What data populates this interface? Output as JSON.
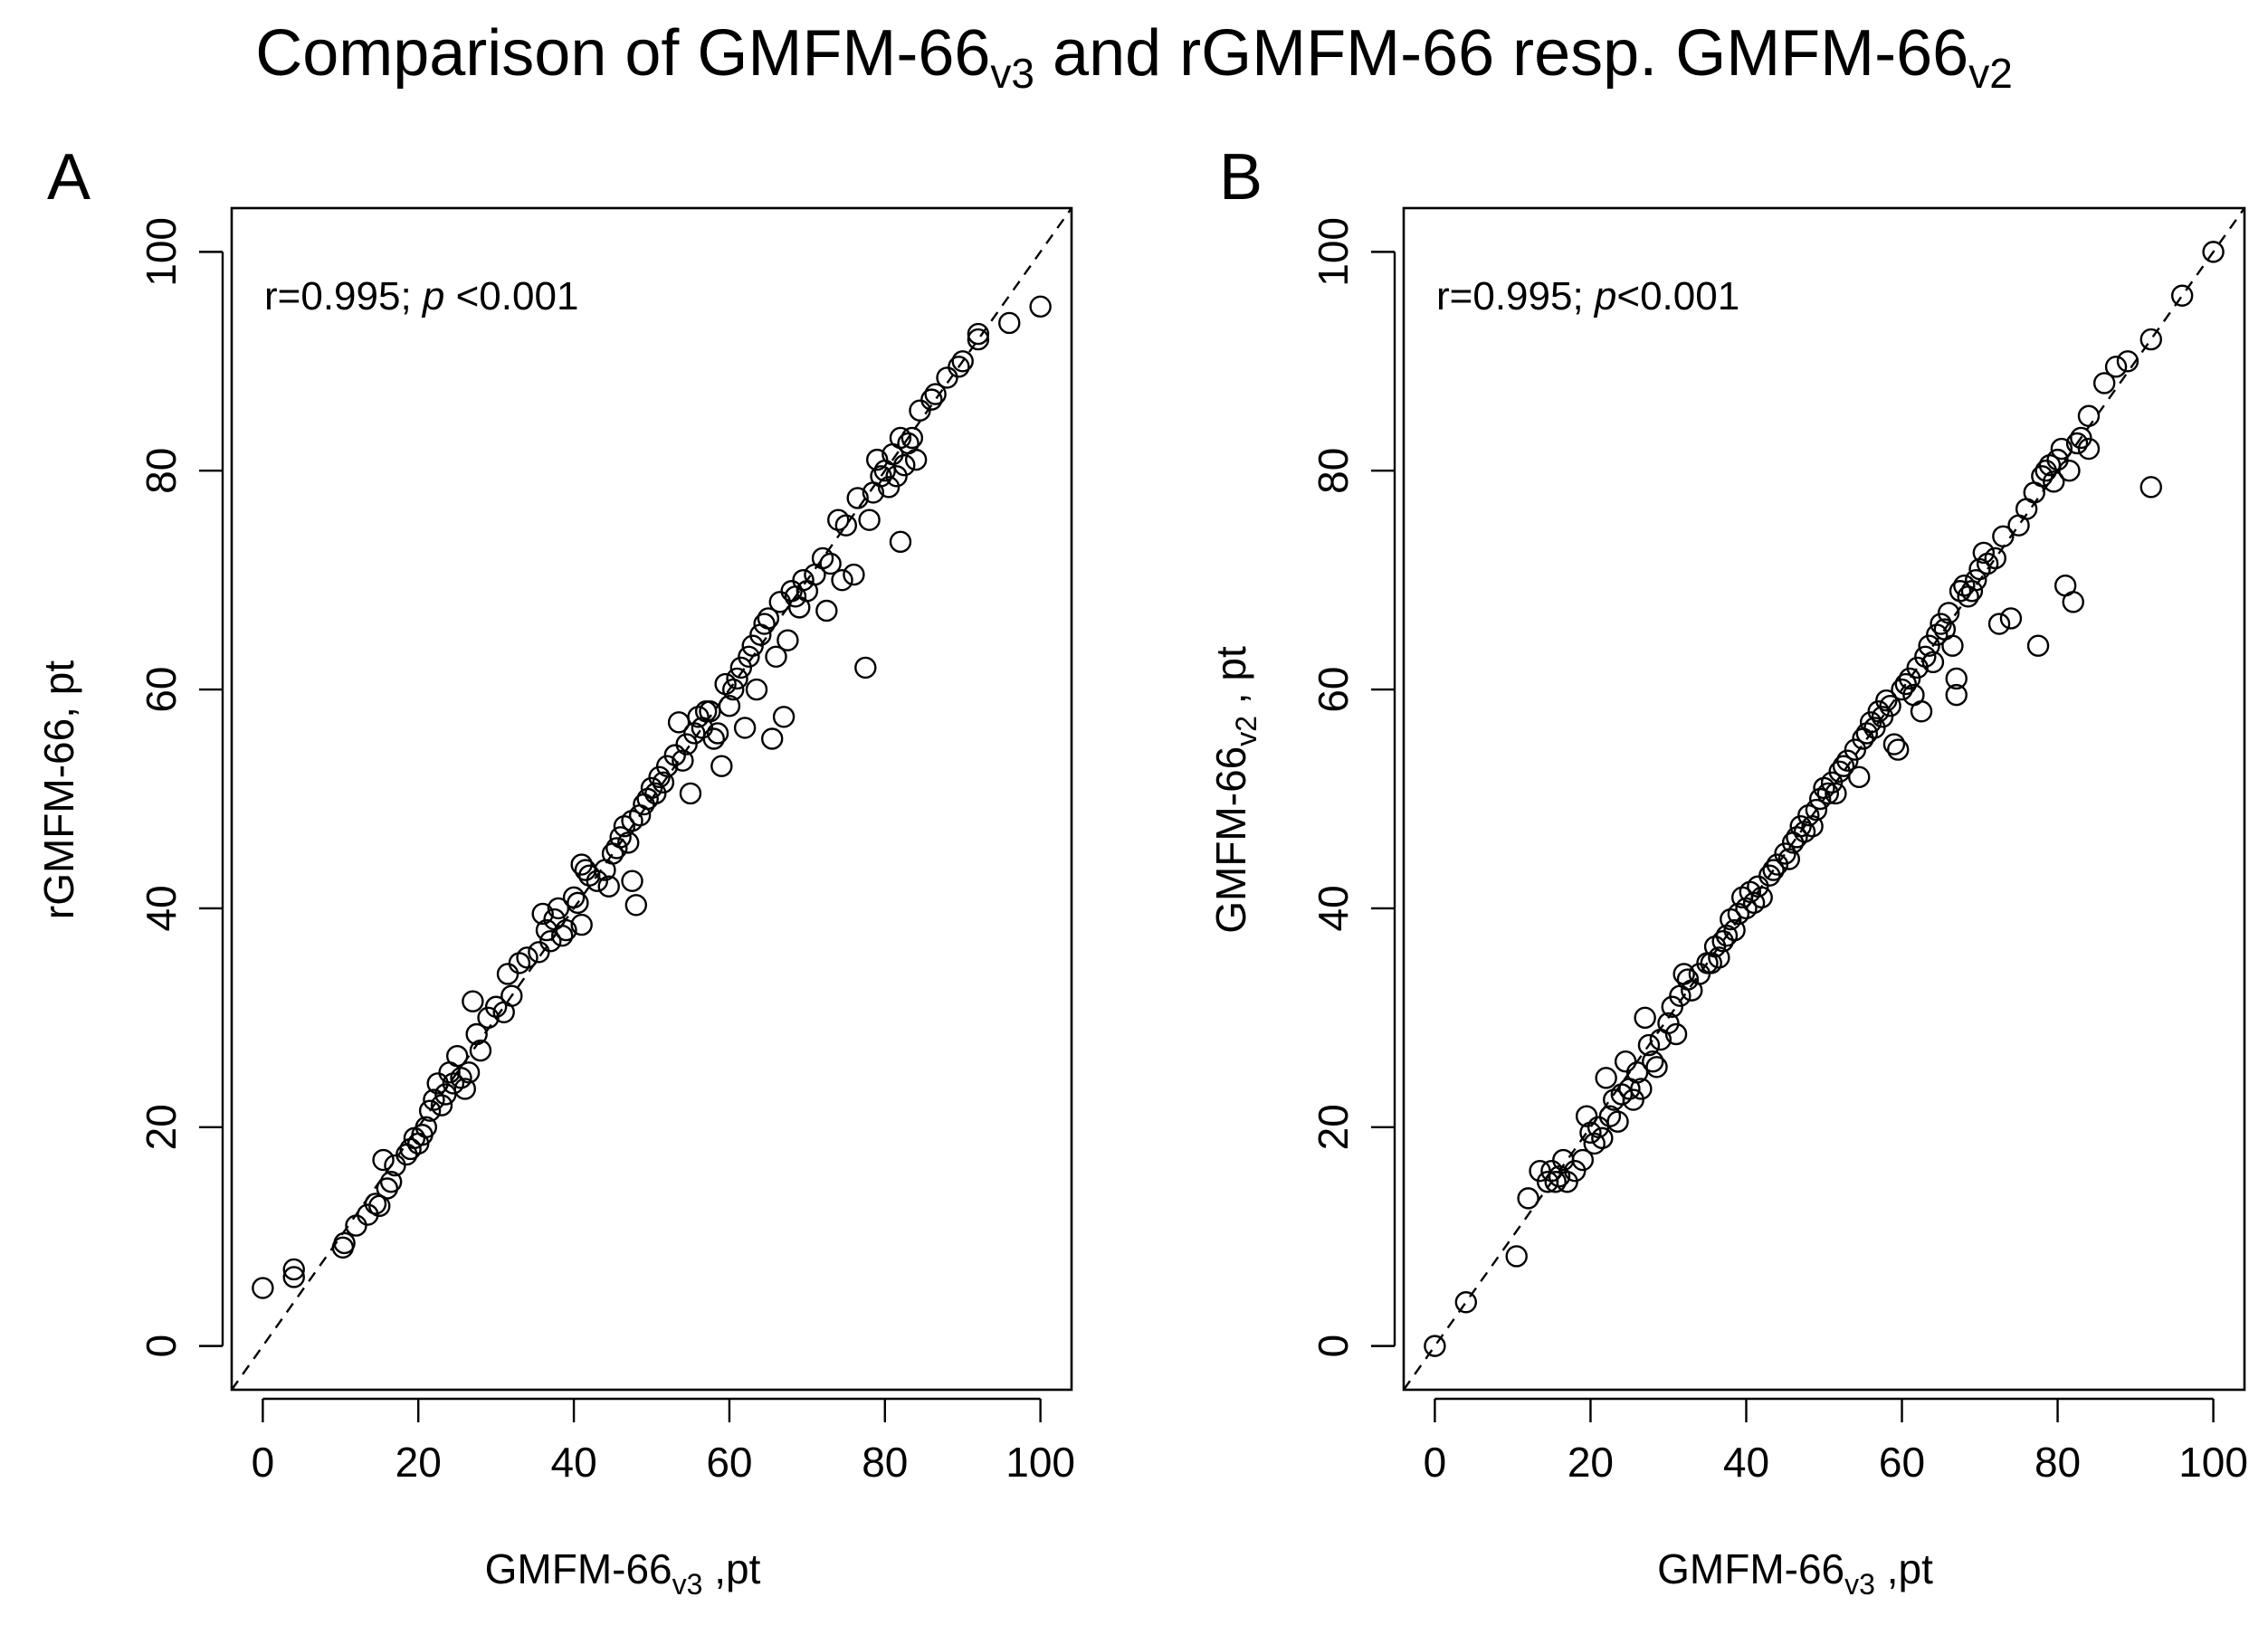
{
  "figure": {
    "title_main": "Comparison of GMFM-66",
    "title_sub1": "v3",
    "title_mid": " and rGMFM-66 resp. GMFM-66",
    "title_sub2": "v2",
    "colors": {
      "axis": "#000000",
      "marker": "#000000",
      "background": "#ffffff"
    }
  },
  "chart_data": [
    {
      "type": "scatter",
      "panel_label": "A",
      "annotation_r": "r=0.995; ",
      "annotation_p": "p",
      "annotation_rest": " <0.001",
      "xlabel_main": "GMFM-66",
      "xlabel_sub": "v3",
      "xlabel_unit": " ,pt",
      "ylabel_main": "rGMFM-66, pt",
      "ylabel_sub": "",
      "ylabel_unit": "",
      "xlim": [
        -4,
        104
      ],
      "ylim": [
        -4,
        104
      ],
      "xticks": [
        0,
        20,
        40,
        60,
        80,
        100
      ],
      "yticks": [
        0,
        20,
        40,
        60,
        80,
        100
      ],
      "reference_line": "identity (dashed)",
      "points": [
        [
          0,
          5.3
        ],
        [
          4,
          7
        ],
        [
          4,
          6.3
        ],
        [
          10.3,
          9
        ],
        [
          10.5,
          9.4
        ],
        [
          12,
          11
        ],
        [
          13.5,
          12
        ],
        [
          14.5,
          13
        ],
        [
          15,
          12.8
        ],
        [
          15.5,
          17
        ],
        [
          16,
          14.4
        ],
        [
          16.5,
          15
        ],
        [
          17,
          16.5
        ],
        [
          18.5,
          17.5
        ],
        [
          19,
          18
        ],
        [
          19.5,
          19
        ],
        [
          20,
          18.5
        ],
        [
          20.5,
          19.3
        ],
        [
          21,
          20
        ],
        [
          21.5,
          21.5
        ],
        [
          22,
          22.5
        ],
        [
          22.5,
          24
        ],
        [
          23,
          22
        ],
        [
          23.5,
          23
        ],
        [
          24,
          25
        ],
        [
          24.5,
          24
        ],
        [
          25,
          26.5
        ],
        [
          25.5,
          24.5
        ],
        [
          26,
          23.5
        ],
        [
          26.5,
          25
        ],
        [
          27,
          31.5
        ],
        [
          27.5,
          28.5
        ],
        [
          28,
          27
        ],
        [
          29,
          30
        ],
        [
          30,
          31
        ],
        [
          31,
          30.5
        ],
        [
          31.5,
          34
        ],
        [
          32,
          32
        ],
        [
          33,
          35
        ],
        [
          34,
          35.5
        ],
        [
          35.5,
          36
        ],
        [
          36,
          39.5
        ],
        [
          36.5,
          38
        ],
        [
          37,
          37
        ],
        [
          37.5,
          39
        ],
        [
          38,
          40
        ],
        [
          38.5,
          37.5
        ],
        [
          39,
          38
        ],
        [
          40,
          41
        ],
        [
          40.5,
          40.5
        ],
        [
          41,
          44
        ],
        [
          41,
          38.5
        ],
        [
          41.5,
          43.5
        ],
        [
          42,
          43
        ],
        [
          43,
          42.5
        ],
        [
          44,
          43.5
        ],
        [
          44.5,
          42
        ],
        [
          45,
          45
        ],
        [
          45.5,
          45.5
        ],
        [
          46,
          46.5
        ],
        [
          46.5,
          47.5
        ],
        [
          47,
          46
        ],
        [
          47.5,
          48
        ],
        [
          47.5,
          42.5
        ],
        [
          48,
          40.3
        ],
        [
          48.5,
          48.5
        ],
        [
          49,
          49.5
        ],
        [
          49.5,
          50
        ],
        [
          50,
          51
        ],
        [
          50.5,
          50.5
        ],
        [
          51,
          52
        ],
        [
          51.5,
          51.5
        ],
        [
          52,
          53
        ],
        [
          53,
          54
        ],
        [
          53.5,
          57
        ],
        [
          54,
          53.5
        ],
        [
          54.5,
          55
        ],
        [
          55,
          50.5
        ],
        [
          55.5,
          56
        ],
        [
          56,
          57.5
        ],
        [
          56.5,
          56.5
        ],
        [
          57,
          58
        ],
        [
          57.5,
          58
        ],
        [
          58,
          55.5
        ],
        [
          58.5,
          56
        ],
        [
          59,
          53
        ],
        [
          59.5,
          60.5
        ],
        [
          60,
          58.5
        ],
        [
          60.5,
          60
        ],
        [
          61,
          61
        ],
        [
          61.5,
          62
        ],
        [
          62,
          56.5
        ],
        [
          62.5,
          63
        ],
        [
          63,
          64
        ],
        [
          63.5,
          60
        ],
        [
          64,
          65
        ],
        [
          64.5,
          66
        ],
        [
          65,
          66.5
        ],
        [
          65.5,
          55.5
        ],
        [
          66,
          63
        ],
        [
          66.5,
          68
        ],
        [
          67,
          57.5
        ],
        [
          67.5,
          64.5
        ],
        [
          68,
          69
        ],
        [
          68.5,
          68.5
        ],
        [
          69,
          67.5
        ],
        [
          69.5,
          70
        ],
        [
          70,
          69
        ],
        [
          71,
          70.5
        ],
        [
          72,
          72
        ],
        [
          72.5,
          67.2
        ],
        [
          73,
          71.5
        ],
        [
          74,
          75.5
        ],
        [
          74.5,
          70
        ],
        [
          75,
          75
        ],
        [
          76,
          70.5
        ],
        [
          76.5,
          77.5
        ],
        [
          77.5,
          62
        ],
        [
          78,
          75.5
        ],
        [
          78.5,
          78
        ],
        [
          79,
          81
        ],
        [
          79.5,
          79.5
        ],
        [
          80,
          80
        ],
        [
          80.5,
          78.5
        ],
        [
          81,
          81.5
        ],
        [
          81.5,
          79.5
        ],
        [
          82,
          73.5
        ],
        [
          82,
          83
        ],
        [
          82.5,
          80.5
        ],
        [
          83,
          82.5
        ],
        [
          83.5,
          83
        ],
        [
          84,
          81
        ],
        [
          84.5,
          85.5
        ],
        [
          86,
          86.5
        ],
        [
          86.5,
          87
        ],
        [
          88,
          88.5
        ],
        [
          89.5,
          89.5
        ],
        [
          90,
          90
        ],
        [
          92,
          92
        ],
        [
          92,
          92.5
        ],
        [
          96,
          93.5
        ],
        [
          100,
          95
        ]
      ]
    },
    {
      "type": "scatter",
      "panel_label": "B",
      "annotation_r": "r=0.995; ",
      "annotation_p": "p",
      "annotation_rest": "<0.001",
      "xlabel_main": "GMFM-66",
      "xlabel_sub": "v3",
      "xlabel_unit": " ,pt",
      "ylabel_main": "GMFM-66",
      "ylabel_sub": "v2",
      "ylabel_unit": " , pt",
      "xlim": [
        -4,
        104
      ],
      "ylim": [
        -4,
        104
      ],
      "xticks": [
        0,
        20,
        40,
        60,
        80,
        100
      ],
      "yticks": [
        0,
        20,
        40,
        60,
        80,
        100
      ],
      "reference_line": "identity (dashed)",
      "points": [
        [
          0,
          0
        ],
        [
          4,
          4
        ],
        [
          10.5,
          8.2
        ],
        [
          12,
          13.5
        ],
        [
          13.5,
          16
        ],
        [
          14.5,
          15
        ],
        [
          15,
          16
        ],
        [
          15.5,
          15
        ],
        [
          16,
          15.5
        ],
        [
          16.5,
          17
        ],
        [
          17,
          15
        ],
        [
          18,
          16
        ],
        [
          19,
          17
        ],
        [
          19.5,
          21
        ],
        [
          20,
          19.5
        ],
        [
          20.5,
          18.5
        ],
        [
          21,
          20
        ],
        [
          21.5,
          19
        ],
        [
          22,
          24.5
        ],
        [
          22.5,
          21
        ],
        [
          23,
          22.5
        ],
        [
          23.5,
          20.5
        ],
        [
          24,
          23
        ],
        [
          24.5,
          26
        ],
        [
          25,
          23.5
        ],
        [
          25.5,
          22.5
        ],
        [
          26,
          25
        ],
        [
          26.5,
          23.5
        ],
        [
          27,
          30
        ],
        [
          27.5,
          27.5
        ],
        [
          28,
          26
        ],
        [
          28.5,
          25.5
        ],
        [
          29,
          28
        ],
        [
          30,
          29.5
        ],
        [
          30.5,
          31
        ],
        [
          31,
          28.5
        ],
        [
          31.5,
          32
        ],
        [
          32,
          34
        ],
        [
          32.5,
          33.5
        ],
        [
          33,
          32.5
        ],
        [
          34,
          34
        ],
        [
          35,
          35
        ],
        [
          35.5,
          35
        ],
        [
          36,
          36.5
        ],
        [
          36.5,
          35.5
        ],
        [
          37,
          37
        ],
        [
          37.5,
          37.5
        ],
        [
          38,
          39
        ],
        [
          38.5,
          38
        ],
        [
          39,
          39.5
        ],
        [
          39.5,
          41
        ],
        [
          40,
          40
        ],
        [
          40.5,
          41.5
        ],
        [
          41,
          40.5
        ],
        [
          41.5,
          42
        ],
        [
          42,
          41
        ],
        [
          43,
          43
        ],
        [
          43.5,
          43.5
        ],
        [
          44,
          44
        ],
        [
          45,
          45
        ],
        [
          45.5,
          44.5
        ],
        [
          46,
          46
        ],
        [
          46.5,
          46.5
        ],
        [
          47,
          47.5
        ],
        [
          47.5,
          47
        ],
        [
          48,
          48.5
        ],
        [
          48.5,
          47.5
        ],
        [
          49,
          49
        ],
        [
          49.5,
          50
        ],
        [
          50,
          51
        ],
        [
          50.5,
          50.5
        ],
        [
          51,
          51.5
        ],
        [
          51.5,
          50.5
        ],
        [
          52,
          52.5
        ],
        [
          52.5,
          53
        ],
        [
          53,
          53.5
        ],
        [
          54,
          54.5
        ],
        [
          54.5,
          52
        ],
        [
          55,
          55.5
        ],
        [
          55.5,
          56
        ],
        [
          56,
          57
        ],
        [
          56.5,
          56.5
        ],
        [
          57,
          58
        ],
        [
          57.5,
          57.5
        ],
        [
          58,
          59
        ],
        [
          58.5,
          58.5
        ],
        [
          59,
          55
        ],
        [
          59.5,
          54.5
        ],
        [
          60,
          60
        ],
        [
          60.5,
          60.5
        ],
        [
          61,
          61
        ],
        [
          61.5,
          59.5
        ],
        [
          62,
          62
        ],
        [
          62.5,
          58
        ],
        [
          63,
          63
        ],
        [
          63.5,
          64
        ],
        [
          64,
          62.5
        ],
        [
          64.5,
          65
        ],
        [
          65,
          66
        ],
        [
          65.5,
          65.5
        ],
        [
          66,
          67
        ],
        [
          66.5,
          64
        ],
        [
          67,
          61
        ],
        [
          67,
          59.5
        ],
        [
          67.5,
          69
        ],
        [
          68,
          69.5
        ],
        [
          68.5,
          68.5
        ],
        [
          69,
          69
        ],
        [
          69.5,
          70
        ],
        [
          70,
          71
        ],
        [
          70.5,
          72.5
        ],
        [
          71,
          71.5
        ],
        [
          72,
          72
        ],
        [
          72.5,
          66
        ],
        [
          73,
          74
        ],
        [
          74,
          66.5
        ],
        [
          75,
          75
        ],
        [
          76,
          76.5
        ],
        [
          77,
          78
        ],
        [
          77.5,
          64
        ],
        [
          78,
          79.5
        ],
        [
          78.5,
          80
        ],
        [
          79,
          80.5
        ],
        [
          79.5,
          79
        ],
        [
          80,
          81
        ],
        [
          80.5,
          82
        ],
        [
          81,
          69.5
        ],
        [
          81.5,
          80
        ],
        [
          82,
          68
        ],
        [
          82.5,
          82.5
        ],
        [
          83,
          83
        ],
        [
          84,
          82
        ],
        [
          84,
          85
        ],
        [
          86,
          88
        ],
        [
          87.5,
          89.5
        ],
        [
          89,
          90
        ],
        [
          92,
          78.5
        ],
        [
          92,
          92
        ],
        [
          96,
          96
        ],
        [
          100,
          100
        ]
      ]
    }
  ]
}
